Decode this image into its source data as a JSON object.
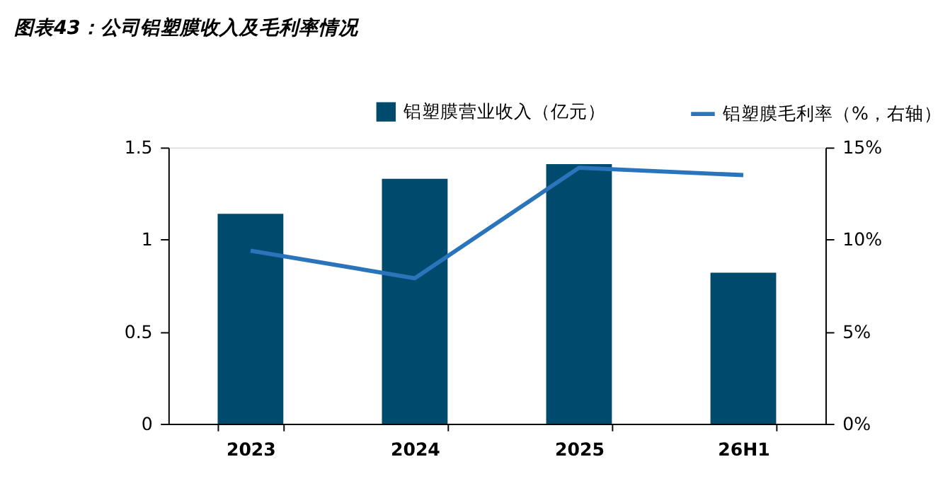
{
  "chart_data": {
    "type": "bar",
    "title": "图表43：公司铝塑膜收入及毛利率情况",
    "categories": [
      "2023",
      "2024",
      "2025",
      "26H1"
    ],
    "series": [
      {
        "name": "铝塑膜营业收入（亿元）",
        "color": "#004a6e",
        "values": [
          1.14,
          1.33,
          1.41,
          0.82
        ]
      },
      {
        "name": "铝塑膜毛利率（%，右轴）",
        "type": "line",
        "axis": "y2",
        "color": "#2a74bb",
        "values": [
          9.4,
          7.9,
          13.9,
          13.5
        ]
      }
    ],
    "ylim": [
      0,
      1.5
    ],
    "yticks": [
      0,
      0.5,
      1,
      1.5
    ],
    "y2lim": [
      0,
      15
    ],
    "y2ticks": [
      {
        "value": 0,
        "label": "0%"
      },
      {
        "value": 5,
        "label": "5%"
      },
      {
        "value": 10,
        "label": "10%"
      },
      {
        "value": 15,
        "label": "15%"
      }
    ],
    "grid": false,
    "legend": "top",
    "marker": "none",
    "line_style": "solid"
  }
}
